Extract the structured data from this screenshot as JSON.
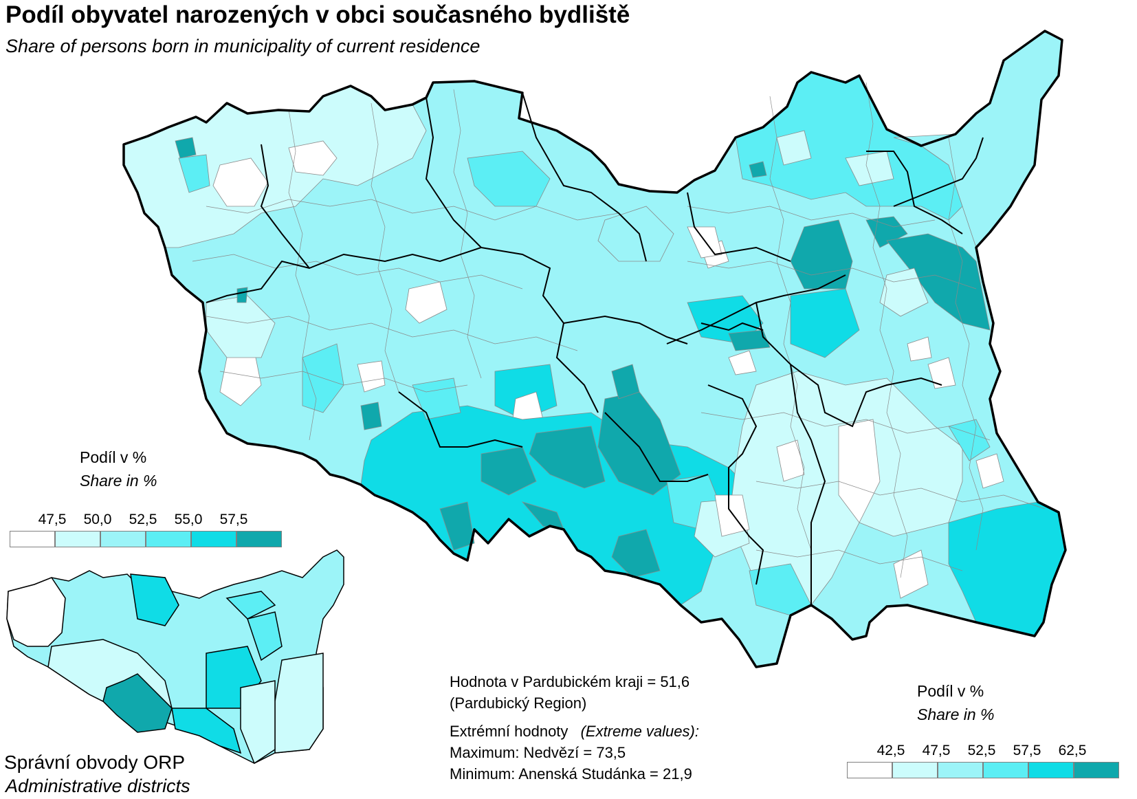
{
  "title": "Podíl obyvatel narozených v obci současného bydliště",
  "subtitle": "Share of persons born in municipality of current residence",
  "colors": {
    "class0": "#ffffff",
    "class1": "#ccfcfc",
    "class2": "#9cf4f8",
    "class3": "#5ceef4",
    "class4": "#10dce6",
    "class5": "#10a8ac",
    "boundary": "#000000",
    "municipality_line": "#7a7a7a"
  },
  "main_legend": {
    "title": "Podíl v %",
    "subtitle": "Share in %",
    "ticks": [
      "47,5",
      "50,0",
      "52,5",
      "55,0",
      "57,5"
    ],
    "classes": [
      "#ffffff",
      "#ccfcfc",
      "#9cf4f8",
      "#5ceef4",
      "#10dce6",
      "#10a8ac"
    ]
  },
  "inset_legend": {
    "title": "Podíl v %",
    "subtitle": "Share in %",
    "ticks": [
      "42,5",
      "47,5",
      "52,5",
      "57,5",
      "62,5"
    ],
    "classes": [
      "#ffffff",
      "#ccfcfc",
      "#9cf4f8",
      "#5ceef4",
      "#10dce6",
      "#10a8ac"
    ]
  },
  "info": {
    "region_value": "Hodnota v Pardubickém kraji = 51,6",
    "region_name": "(Pardubický Region)",
    "extreme_label": "Extrémní hodnoty",
    "extreme_label_en": "(Extreme values):",
    "maximum": "Maximum: Nedvězí = 73,5",
    "minimum": "Minimum: Anenská Studánka = 21,9"
  },
  "inset": {
    "title": "Správní obvody  ORP",
    "subtitle": "Administrative districts"
  }
}
